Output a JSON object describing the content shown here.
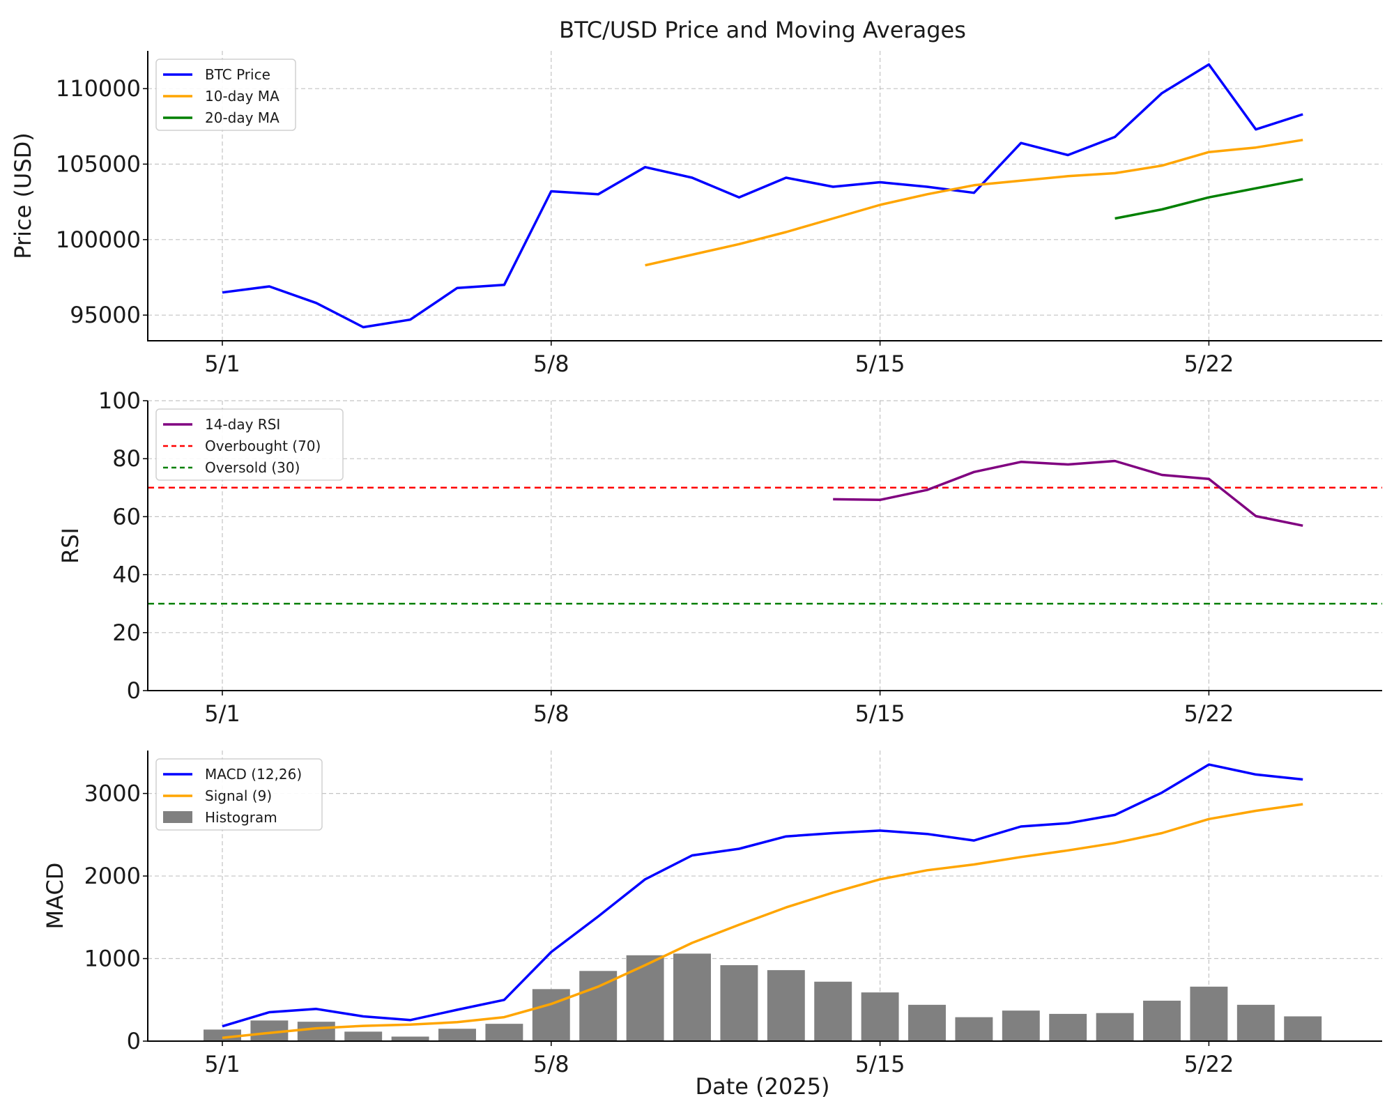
{
  "chart_data": [
    {
      "type": "line",
      "title": "BTC/USD Price and Moving Averages",
      "xlabel": "",
      "ylabel": "Price (USD)",
      "x": [
        "5/1",
        "5/2",
        "5/3",
        "5/4",
        "5/5",
        "5/6",
        "5/7",
        "5/8",
        "5/9",
        "5/10",
        "5/11",
        "5/12",
        "5/13",
        "5/14",
        "5/15",
        "5/16",
        "5/17",
        "5/18",
        "5/19",
        "5/20",
        "5/21",
        "5/22",
        "5/23",
        "5/24"
      ],
      "x_ticks": [
        "5/1",
        "5/8",
        "5/15",
        "5/22"
      ],
      "ylim": [
        93300,
        112500
      ],
      "y_ticks": [
        95000,
        100000,
        105000,
        110000
      ],
      "y_tick_labels": [
        "95000",
        "100000",
        "105000",
        "110000"
      ],
      "grid": true,
      "legend": "upper-left",
      "series": [
        {
          "name": "BTC Price",
          "color": "#0000ff",
          "style": "solid",
          "values": [
            96500,
            96900,
            95800,
            94200,
            94700,
            96800,
            97000,
            103200,
            103000,
            104800,
            104100,
            102800,
            104100,
            103500,
            103800,
            103500,
            103100,
            106400,
            105600,
            106800,
            109700,
            111600,
            107300,
            108300
          ]
        },
        {
          "name": "10-day MA",
          "color": "#ffa500",
          "style": "solid",
          "values": [
            null,
            null,
            null,
            null,
            null,
            null,
            null,
            null,
            null,
            98300,
            99000,
            99700,
            100500,
            101400,
            102300,
            103000,
            103600,
            103900,
            104200,
            104400,
            104900,
            105800,
            106100,
            106600
          ]
        },
        {
          "name": "20-day MA",
          "color": "#008000",
          "style": "solid",
          "values": [
            null,
            null,
            null,
            null,
            null,
            null,
            null,
            null,
            null,
            null,
            null,
            null,
            null,
            null,
            null,
            null,
            null,
            null,
            null,
            101400,
            102000,
            102800,
            103400,
            104000
          ]
        }
      ]
    },
    {
      "type": "line",
      "title": "",
      "xlabel": "",
      "ylabel": "RSI",
      "x": [
        "5/1",
        "5/2",
        "5/3",
        "5/4",
        "5/5",
        "5/6",
        "5/7",
        "5/8",
        "5/9",
        "5/10",
        "5/11",
        "5/12",
        "5/13",
        "5/14",
        "5/15",
        "5/16",
        "5/17",
        "5/18",
        "5/19",
        "5/20",
        "5/21",
        "5/22",
        "5/23",
        "5/24"
      ],
      "x_ticks": [
        "5/1",
        "5/8",
        "5/15",
        "5/22"
      ],
      "ylim": [
        0,
        100
      ],
      "y_ticks": [
        0,
        20,
        40,
        60,
        80,
        100
      ],
      "y_tick_labels": [
        "0",
        "20",
        "40",
        "60",
        "80",
        "100"
      ],
      "grid": true,
      "legend": "upper-left",
      "series": [
        {
          "name": "14-day RSI",
          "color": "#800080",
          "style": "solid",
          "values": [
            null,
            null,
            null,
            null,
            null,
            null,
            null,
            null,
            null,
            null,
            null,
            null,
            null,
            66.0,
            65.8,
            69.2,
            75.4,
            78.9,
            78.0,
            79.2,
            74.4,
            73.0,
            60.2,
            56.9
          ]
        },
        {
          "name": "Overbought (70)",
          "color": "#ff0000",
          "style": "dashed",
          "hline": 70
        },
        {
          "name": "Oversold (30)",
          "color": "#008000",
          "style": "dashed",
          "hline": 30
        }
      ]
    },
    {
      "type": "line",
      "title": "",
      "xlabel": "Date (2025)",
      "ylabel": "MACD",
      "x": [
        "5/1",
        "5/2",
        "5/3",
        "5/4",
        "5/5",
        "5/6",
        "5/7",
        "5/8",
        "5/9",
        "5/10",
        "5/11",
        "5/12",
        "5/13",
        "5/14",
        "5/15",
        "5/16",
        "5/17",
        "5/18",
        "5/19",
        "5/20",
        "5/21",
        "5/22",
        "5/23",
        "5/24"
      ],
      "x_ticks": [
        "5/1",
        "5/8",
        "5/15",
        "5/22"
      ],
      "ylim": [
        0,
        3520
      ],
      "y_ticks": [
        0,
        1000,
        2000,
        3000
      ],
      "y_tick_labels": [
        "0",
        "1000",
        "2000",
        "3000"
      ],
      "grid": true,
      "legend": "upper-left",
      "series": [
        {
          "name": "MACD (12,26)",
          "color": "#0000ff",
          "style": "solid",
          "values": [
            180,
            350,
            390,
            300,
            255,
            380,
            500,
            1080,
            1510,
            1960,
            2250,
            2330,
            2480,
            2520,
            2550,
            2510,
            2430,
            2600,
            2640,
            2740,
            3010,
            3350,
            3230,
            3170
          ]
        },
        {
          "name": "Signal (9)",
          "color": "#ffa500",
          "style": "solid",
          "values": [
            40,
            100,
            155,
            185,
            200,
            230,
            290,
            450,
            660,
            920,
            1190,
            1410,
            1620,
            1800,
            1960,
            2070,
            2140,
            2230,
            2310,
            2400,
            2520,
            2690,
            2790,
            2870
          ]
        },
        {
          "name": "Histogram",
          "color": "#808080",
          "style": "bar",
          "values": [
            140,
            250,
            235,
            115,
            55,
            150,
            210,
            630,
            850,
            1040,
            1060,
            920,
            860,
            720,
            590,
            440,
            290,
            370,
            330,
            340,
            490,
            660,
            440,
            300
          ]
        }
      ]
    }
  ]
}
